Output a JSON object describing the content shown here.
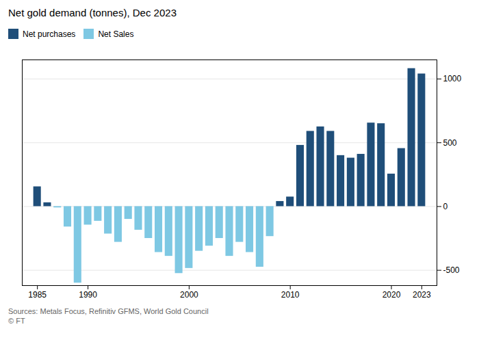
{
  "chart_data": {
    "type": "bar",
    "title": "Net gold demand (tonnes), Dec 2023",
    "x": [
      1985,
      1986,
      1987,
      1988,
      1989,
      1990,
      1991,
      1992,
      1993,
      1994,
      1995,
      1996,
      1997,
      1998,
      1999,
      2000,
      2001,
      2002,
      2003,
      2004,
      2005,
      2006,
      2007,
      2008,
      2009,
      2010,
      2011,
      2012,
      2013,
      2014,
      2015,
      2016,
      2017,
      2018,
      2019,
      2020,
      2021,
      2022,
      2023
    ],
    "series": [
      {
        "name": "Net purchases",
        "color": "#1f4e79",
        "values": [
          155,
          30,
          null,
          null,
          null,
          null,
          null,
          null,
          null,
          null,
          null,
          null,
          null,
          null,
          null,
          null,
          null,
          null,
          null,
          null,
          null,
          null,
          null,
          null,
          40,
          75,
          480,
          590,
          625,
          590,
          400,
          380,
          410,
          655,
          650,
          255,
          455,
          1082,
          1040
        ]
      },
      {
        "name": "Net Sales",
        "color": "#7ec8e3",
        "values": [
          null,
          null,
          -10,
          -160,
          -600,
          -145,
          -115,
          -215,
          -280,
          -100,
          -185,
          -250,
          -360,
          -390,
          -525,
          -485,
          -350,
          -310,
          -250,
          -390,
          -280,
          -360,
          -475,
          -235,
          null,
          null,
          null,
          null,
          null,
          null,
          null,
          null,
          null,
          null,
          null,
          null,
          null,
          null,
          null
        ]
      }
    ],
    "xlim": [
      1983.5,
      2024.5
    ],
    "xticks": [
      1985,
      1990,
      2000,
      2010,
      2020,
      2023
    ],
    "ylim": [
      -620,
      1150
    ],
    "yticks": [
      -500,
      0,
      500,
      1000
    ],
    "grid": true,
    "legend": "top",
    "annotations": [
      "Sources: Metals Focus, Refinitiv GFMS, World Gold Council",
      "© FT"
    ]
  }
}
